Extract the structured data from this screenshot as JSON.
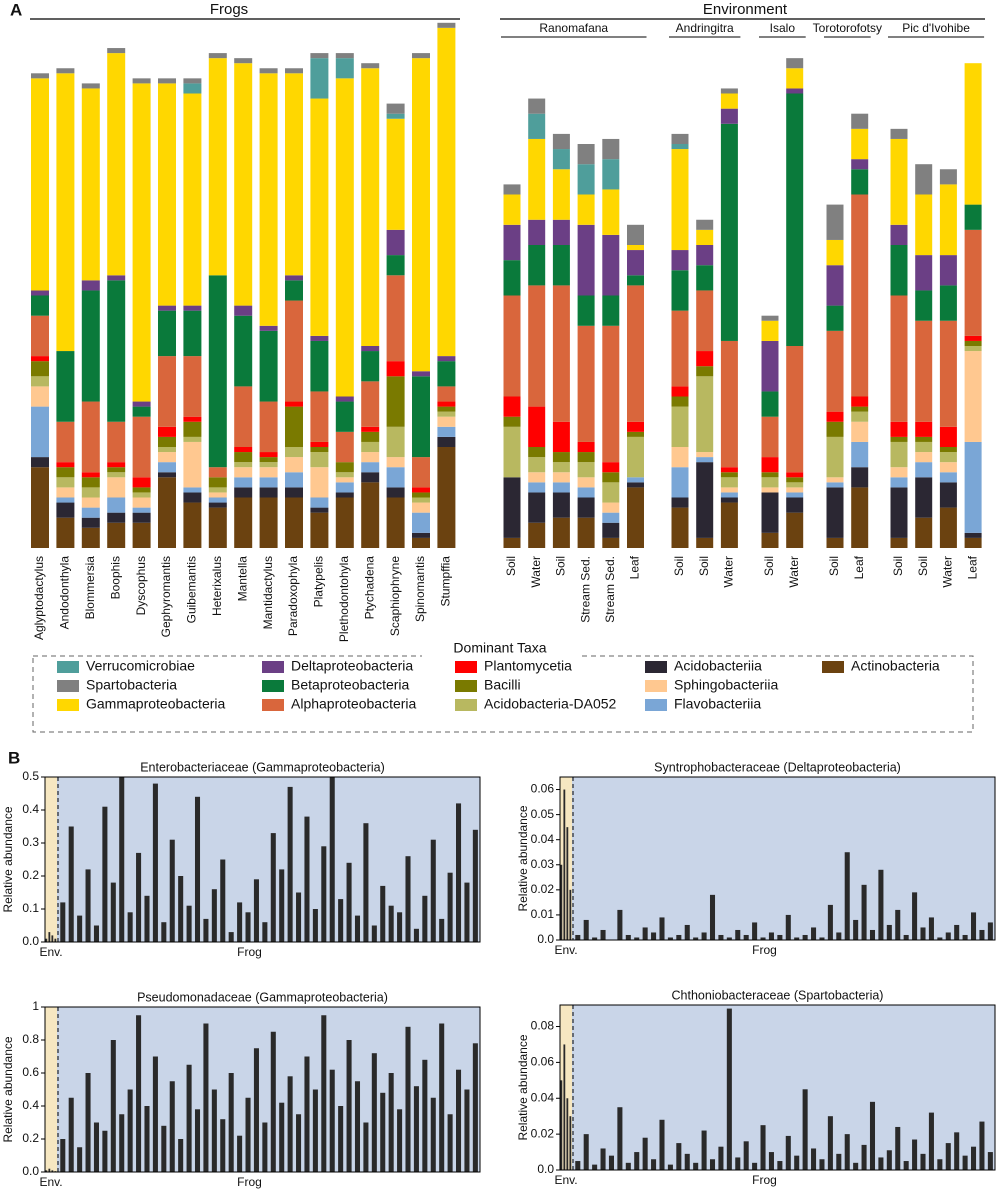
{
  "panels": [
    "A",
    "B"
  ],
  "chart_data": [
    {
      "type": "stacked_bar",
      "title": "Frogs",
      "legend_title": "Dominant Taxa",
      "categories": [
        "Aglyptodactylus",
        "Andodonthyla",
        "Blommersia",
        "Boophis",
        "Dyscophus",
        "Gephyromantis",
        "Guibemantis",
        "Heterixalus",
        "Mantella",
        "Mantidactylus",
        "Paradoxophyla",
        "Platypelis",
        "Plethodontohyla",
        "Ptychadena",
        "Scaphiophryne",
        "Spinomantis",
        "Stumpffia"
      ],
      "series": [
        {
          "name": "Verrucomicrobiae",
          "color": "#4f9e9b",
          "values": [
            0,
            0,
            0,
            0,
            0,
            0,
            0.02,
            0,
            0,
            0,
            0,
            0.08,
            0.04,
            0,
            0.01,
            0,
            0
          ]
        },
        {
          "name": "Spartobacteria",
          "color": "#808080",
          "values": [
            0.01,
            0.01,
            0.01,
            0.01,
            0.01,
            0.01,
            0.01,
            0.01,
            0.01,
            0.01,
            0.01,
            0.01,
            0.01,
            0.01,
            0.02,
            0.01,
            0.01
          ]
        },
        {
          "name": "Gammaproteobacteria",
          "color": "#ffd700",
          "values": [
            0.42,
            0.55,
            0.38,
            0.44,
            0.63,
            0.44,
            0.42,
            0.43,
            0.48,
            0.5,
            0.4,
            0.47,
            0.63,
            0.55,
            0.22,
            0.62,
            0.65
          ]
        },
        {
          "name": "Deltaproteobacteria",
          "color": "#6b3f85",
          "values": [
            0.01,
            0,
            0.02,
            0.01,
            0.01,
            0.01,
            0.01,
            0,
            0.02,
            0.01,
            0.01,
            0.01,
            0.01,
            0.01,
            0.05,
            0.01,
            0.01
          ]
        },
        {
          "name": "Betaproteobacteria",
          "color": "#0a7a3b",
          "values": [
            0.04,
            0.14,
            0.22,
            0.28,
            0.02,
            0.09,
            0.09,
            0.38,
            0.14,
            0.14,
            0.04,
            0.1,
            0.06,
            0.06,
            0.04,
            0.16,
            0.05
          ]
        },
        {
          "name": "Alphaproteobacteria",
          "color": "#d9663c",
          "values": [
            0.08,
            0.08,
            0.14,
            0.08,
            0.12,
            0.14,
            0.12,
            0.02,
            0.12,
            0.1,
            0.2,
            0.1,
            0.06,
            0.09,
            0.17,
            0.06,
            0.03
          ]
        },
        {
          "name": "Plantomycetia",
          "color": "#ff0000",
          "values": [
            0.01,
            0.01,
            0.01,
            0.01,
            0.02,
            0.02,
            0.01,
            0,
            0.01,
            0.01,
            0.01,
            0.01,
            0,
            0.01,
            0.03,
            0.01,
            0.01
          ]
        },
        {
          "name": "Bacilli",
          "color": "#7a7a00",
          "values": [
            0.03,
            0.02,
            0.02,
            0.01,
            0.01,
            0.02,
            0.03,
            0.02,
            0.02,
            0.01,
            0.08,
            0.01,
            0.02,
            0.02,
            0.1,
            0.01,
            0.01
          ]
        },
        {
          "name": "Acidobacteria-DA052",
          "color": "#b8b860",
          "values": [
            0.02,
            0.02,
            0.02,
            0.01,
            0.01,
            0.01,
            0.01,
            0.01,
            0.01,
            0.01,
            0.02,
            0.03,
            0.01,
            0.02,
            0.06,
            0.01,
            0.01
          ]
        },
        {
          "name": "Acidobacteriia",
          "color": "#2b2733",
          "values": [
            0.02,
            0.03,
            0.02,
            0.02,
            0.02,
            0.01,
            0.02,
            0.01,
            0.02,
            0.02,
            0.02,
            0.01,
            0.01,
            0.02,
            0.02,
            0.01,
            0.02
          ]
        },
        {
          "name": "Sphingobacteriia",
          "color": "#ffc890",
          "values": [
            0.04,
            0.02,
            0.02,
            0.04,
            0.02,
            0.02,
            0.09,
            0.01,
            0.02,
            0.02,
            0.03,
            0.06,
            0.01,
            0.02,
            0.02,
            0.02,
            0.02
          ]
        },
        {
          "name": "Flavobacteriia",
          "color": "#7aa6d6",
          "values": [
            0.1,
            0.01,
            0.02,
            0.03,
            0.01,
            0.02,
            0.01,
            0.01,
            0.02,
            0.02,
            0.03,
            0.02,
            0.02,
            0.02,
            0.04,
            0.04,
            0.02
          ]
        },
        {
          "name": "Actinobacteria",
          "color": "#6b4210",
          "values": [
            0.16,
            0.06,
            0.04,
            0.05,
            0.05,
            0.14,
            0.09,
            0.08,
            0.1,
            0.1,
            0.1,
            0.07,
            0.1,
            0.13,
            0.1,
            0.02,
            0.2
          ]
        }
      ]
    },
    {
      "type": "stacked_bar",
      "title": "Environment",
      "groups": [
        {
          "name": "Ranomafana",
          "categories": [
            "Soil",
            "Water",
            "Soil",
            "Stream Sed.",
            "Stream Sed.",
            "Leaf"
          ]
        },
        {
          "name": "Andringitra",
          "categories": [
            "Soil",
            "Soil",
            "Water"
          ]
        },
        {
          "name": "Isalo",
          "categories": [
            "Soil",
            "Water"
          ]
        },
        {
          "name": "Torotorofotsy",
          "categories": [
            "Soil",
            "Leaf"
          ]
        },
        {
          "name": "Pic d'Ivohibe",
          "categories": [
            "Soil",
            "Soil",
            "Water",
            "Leaf"
          ]
        }
      ],
      "series": [
        {
          "values": [
            0,
            0.05,
            0.04,
            0.06,
            0.06,
            0,
            0.01,
            0,
            0,
            0,
            0,
            0,
            0,
            0,
            0,
            0,
            0
          ]
        },
        {
          "values": [
            0.02,
            0.03,
            0.03,
            0.04,
            0.04,
            0.04,
            0.02,
            0.02,
            0.01,
            0.01,
            0.02,
            0.07,
            0.03,
            0.02,
            0.06,
            0.03,
            0
          ]
        },
        {
          "values": [
            0.06,
            0.16,
            0.1,
            0.06,
            0.09,
            0.01,
            0.2,
            0.03,
            0.03,
            0.04,
            0.04,
            0.05,
            0.06,
            0.17,
            0.12,
            0.14,
            0.28
          ]
        },
        {
          "values": [
            0.07,
            0.05,
            0.05,
            0.14,
            0.12,
            0.05,
            0.04,
            0.04,
            0.03,
            0.1,
            0.01,
            0.08,
            0.02,
            0.04,
            0.07,
            0.06,
            0
          ]
        },
        {
          "values": [
            0.07,
            0.08,
            0.08,
            0.06,
            0.06,
            0.02,
            0.08,
            0.05,
            0.43,
            0.05,
            0.5,
            0.05,
            0.05,
            0.1,
            0.06,
            0.07,
            0.05
          ]
        },
        {
          "values": [
            0.2,
            0.24,
            0.27,
            0.23,
            0.27,
            0.27,
            0.15,
            0.12,
            0.25,
            0.08,
            0.25,
            0.16,
            0.4,
            0.25,
            0.2,
            0.21,
            0.21
          ]
        },
        {
          "values": [
            0.04,
            0.08,
            0.06,
            0.02,
            0.02,
            0.02,
            0.02,
            0.03,
            0.01,
            0.03,
            0.01,
            0.02,
            0.02,
            0.03,
            0.03,
            0.04,
            0.01
          ]
        },
        {
          "values": [
            0.02,
            0.02,
            0.02,
            0.02,
            0.02,
            0.01,
            0.02,
            0.02,
            0.01,
            0.01,
            0.01,
            0.03,
            0.01,
            0.01,
            0.01,
            0.01,
            0.01
          ]
        },
        {
          "values": [
            0.1,
            0.03,
            0.02,
            0.03,
            0.04,
            0.08,
            0.08,
            0.15,
            0.02,
            0.02,
            0.01,
            0.08,
            0.02,
            0.05,
            0.02,
            0.02,
            0.01
          ]
        },
        {
          "values": [
            0.12,
            0.06,
            0.05,
            0.04,
            0.03,
            0.01,
            0.02,
            0.15,
            0.01,
            0.08,
            0.03,
            0.1,
            0.04,
            0.1,
            0.08,
            0.05,
            0.01
          ]
        },
        {
          "values": [
            0,
            0.02,
            0.02,
            0.02,
            0.02,
            0,
            0.04,
            0.01,
            0.01,
            0.01,
            0.01,
            0.01,
            0.04,
            0.02,
            0.02,
            0.02,
            0.18
          ]
        },
        {
          "values": [
            0,
            0.02,
            0.02,
            0.02,
            0.02,
            0.01,
            0.06,
            0.01,
            0.01,
            0,
            0.01,
            0.01,
            0.05,
            0.02,
            0.03,
            0.02,
            0.18
          ]
        },
        {
          "values": [
            0.02,
            0.05,
            0.06,
            0.06,
            0.02,
            0.12,
            0.08,
            0.02,
            0.09,
            0.03,
            0.07,
            0.02,
            0.12,
            0.02,
            0.06,
            0.08,
            0.02
          ]
        }
      ]
    },
    {
      "type": "bar",
      "title": "Enterobacteriaceae (Gammaproteobacteria)",
      "ylabel": "Relative abundance",
      "ylim": [
        0,
        0.5
      ],
      "yticks": [
        {
          "value": 0,
          "label": "0.0"
        },
        0.1,
        0.2,
        0.3,
        0.4,
        0.5
      ],
      "groups": [
        {
          "name": "Env.",
          "values": [
            0.01,
            0.03,
            0.02,
            0.01
          ]
        },
        {
          "name": "Frog",
          "values": [
            0.12,
            0.35,
            0.08,
            0.22,
            0.05,
            0.41,
            0.18,
            0.5,
            0.09,
            0.27,
            0.14,
            0.48,
            0.06,
            0.31,
            0.2,
            0.11,
            0.44,
            0.07,
            0.16,
            0.25,
            0.03,
            0.12,
            0.09,
            0.19,
            0.06,
            0.33,
            0.22,
            0.47,
            0.15,
            0.38,
            0.1,
            0.29,
            0.5,
            0.13,
            0.24,
            0.08,
            0.36,
            0.05,
            0.17,
            0.11,
            0.09,
            0.26,
            0.04,
            0.14,
            0.31,
            0.07,
            0.21,
            0.42,
            0.18,
            0.34
          ]
        }
      ]
    },
    {
      "type": "bar",
      "title": "Syntrophobacteraceae (Deltaproteobacteria)",
      "ylabel": "Relative abundance",
      "ylim": [
        0,
        0.065
      ],
      "yticks": [
        {
          "value": 0,
          "label": "0.0"
        },
        0.01,
        0.02,
        0.03,
        0.04,
        0.05,
        0.06
      ],
      "groups": [
        {
          "name": "Env.",
          "values": [
            0.03,
            0.06,
            0.045,
            0.02
          ]
        },
        {
          "name": "Frog",
          "values": [
            0.002,
            0.008,
            0.001,
            0.004,
            0,
            0.012,
            0.002,
            0.001,
            0.005,
            0.003,
            0.009,
            0.001,
            0.002,
            0.006,
            0.001,
            0.003,
            0.018,
            0.002,
            0.001,
            0.004,
            0.002,
            0.007,
            0.001,
            0.003,
            0.002,
            0.01,
            0.001,
            0.002,
            0.005,
            0.001,
            0.014,
            0.003,
            0.035,
            0.008,
            0.022,
            0.004,
            0.028,
            0.006,
            0.012,
            0.002,
            0.019,
            0.005,
            0.009,
            0.001,
            0.003,
            0.006,
            0.002,
            0.011,
            0.004,
            0.007
          ]
        }
      ]
    },
    {
      "type": "bar",
      "title": "Pseudomonadaceae (Gammaproteobacteria)",
      "ylabel": "Relative abundance",
      "ylim": [
        0,
        1
      ],
      "yticks": [
        {
          "value": 0,
          "label": "0.0"
        },
        0.2,
        0.4,
        0.6,
        0.8,
        1
      ],
      "groups": [
        {
          "name": "Env.",
          "values": [
            0.01,
            0.02,
            0.01,
            0.005
          ]
        },
        {
          "name": "Frog",
          "values": [
            0.2,
            0.45,
            0.15,
            0.6,
            0.3,
            0.25,
            0.8,
            0.35,
            0.5,
            0.95,
            0.4,
            0.7,
            0.28,
            0.55,
            0.2,
            0.65,
            0.38,
            0.9,
            0.5,
            0.32,
            0.6,
            0.22,
            0.45,
            0.75,
            0.3,
            0.85,
            0.42,
            0.58,
            0.35,
            0.7,
            0.5,
            0.95,
            0.62,
            0.4,
            0.8,
            0.55,
            0.3,
            0.72,
            0.48,
            0.6,
            0.38,
            0.88,
            0.52,
            0.68,
            0.45,
            0.9,
            0.35,
            0.62,
            0.5,
            0.78
          ]
        }
      ]
    },
    {
      "type": "bar",
      "title": "Chthoniobacteraceae (Spartobacteria)",
      "ylabel": "Relative abundance",
      "ylim": [
        0,
        0.092
      ],
      "yticks": [
        {
          "value": 0,
          "label": "0.0"
        },
        0.02,
        0.04,
        0.06,
        0.08
      ],
      "groups": [
        {
          "name": "Env.",
          "values": [
            0.05,
            0.07,
            0.04,
            0.03
          ]
        },
        {
          "name": "Frog",
          "values": [
            0.005,
            0.02,
            0.003,
            0.012,
            0.008,
            0.035,
            0.004,
            0.01,
            0.018,
            0.006,
            0.028,
            0.003,
            0.015,
            0.009,
            0.004,
            0.022,
            0.006,
            0.013,
            0.09,
            0.007,
            0.016,
            0.004,
            0.025,
            0.01,
            0.005,
            0.019,
            0.008,
            0.045,
            0.012,
            0.006,
            0.03,
            0.009,
            0.02,
            0.004,
            0.014,
            0.038,
            0.007,
            0.011,
            0.024,
            0.005,
            0.017,
            0.009,
            0.032,
            0.006,
            0.015,
            0.021,
            0.008,
            0.013,
            0.027,
            0.01
          ]
        }
      ]
    }
  ]
}
